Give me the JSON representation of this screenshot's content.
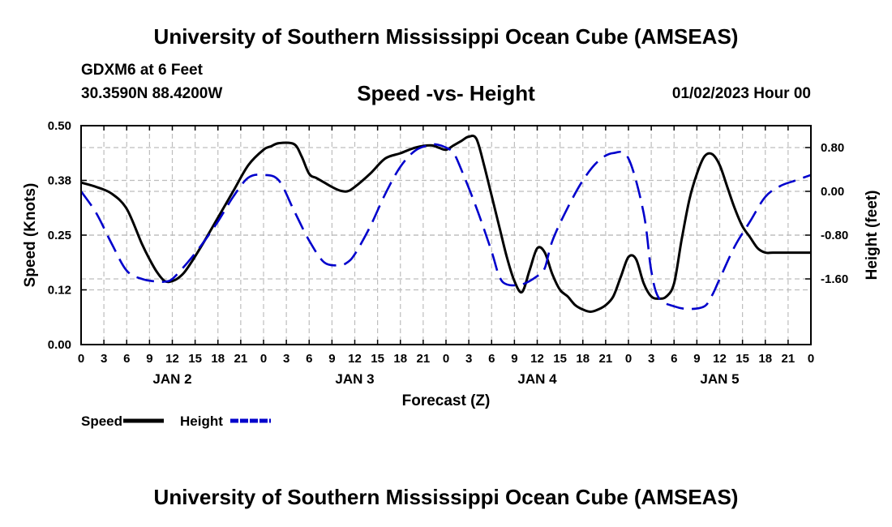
{
  "header": {
    "title": "University of Southern Mississippi Ocean Cube (AMSEAS)",
    "station": "GDXM6 at 6 Feet",
    "coords": "30.3590N  88.4200W",
    "chart_title": "Speed -vs- Height",
    "datetime": "01/02/2023 Hour 00"
  },
  "footer": {
    "title": "University of Southern Mississippi Ocean Cube (AMSEAS)"
  },
  "chart_data": {
    "type": "line",
    "title": "Speed -vs- Height",
    "xlabel": "Forecast (Z)",
    "ylabel_left": "Speed (Knots)",
    "ylabel_right": "Height (feet)",
    "x_range": [
      0,
      96
    ],
    "x_tick_step": 3,
    "x_tick_labels": [
      "0",
      "3",
      "6",
      "9",
      "12",
      "15",
      "18",
      "21",
      "0",
      "3",
      "6",
      "9",
      "12",
      "15",
      "18",
      "21",
      "0",
      "3",
      "6",
      "9",
      "12",
      "15",
      "18",
      "21",
      "0",
      "3",
      "6",
      "9",
      "12",
      "15",
      "18",
      "21",
      "0"
    ],
    "day_labels": [
      {
        "label": "JAN 2",
        "x": 12
      },
      {
        "label": "JAN 3",
        "x": 36
      },
      {
        "label": "JAN 4",
        "x": 60
      },
      {
        "label": "JAN 5",
        "x": 84
      }
    ],
    "y_left": {
      "range": [
        0,
        0.5
      ],
      "ticks": [
        0.0,
        0.125,
        0.25,
        0.375,
        0.5
      ],
      "tick_labels": [
        "0.00",
        "0.12",
        "0.25",
        "0.38",
        "0.50"
      ]
    },
    "y_right": {
      "range": [
        -2.8,
        1.2
      ],
      "ticks": [
        0.8,
        0.0,
        -0.8,
        -1.6
      ],
      "tick_labels": [
        "0.80",
        "0.00",
        "-0.80",
        "-1.60"
      ]
    },
    "grid": true,
    "legend": [
      {
        "label": "Speed",
        "color": "#000000",
        "style": "solid"
      },
      {
        "label": "Height",
        "color": "#0000cc",
        "style": "dashed"
      }
    ],
    "series": [
      {
        "name": "Speed",
        "axis": "left",
        "color": "#000000",
        "style": "solid",
        "x": [
          0,
          2,
          4,
          6,
          8,
          9,
          10,
          11,
          12,
          13,
          14,
          16,
          18,
          20,
          22,
          24,
          25,
          26,
          28,
          29,
          30,
          31,
          32,
          33,
          34,
          35,
          36,
          38,
          40,
          42,
          44,
          46,
          47,
          48,
          49,
          50,
          51,
          52,
          53,
          54,
          55,
          56,
          57,
          58,
          59,
          60,
          61,
          62,
          63,
          64,
          65,
          66,
          67,
          68,
          69,
          70,
          71,
          72,
          73,
          74,
          75,
          76,
          77,
          78,
          79,
          80,
          81,
          82,
          83,
          84,
          85,
          86,
          87,
          88,
          89,
          90,
          91,
          92,
          93,
          94,
          95,
          96
        ],
        "y": [
          0.37,
          0.36,
          0.345,
          0.31,
          0.23,
          0.195,
          0.165,
          0.145,
          0.145,
          0.155,
          0.175,
          0.23,
          0.29,
          0.35,
          0.41,
          0.445,
          0.453,
          0.46,
          0.458,
          0.43,
          0.39,
          0.38,
          0.37,
          0.36,
          0.352,
          0.35,
          0.36,
          0.39,
          0.425,
          0.437,
          0.45,
          0.455,
          0.45,
          0.445,
          0.455,
          0.465,
          0.475,
          0.47,
          0.41,
          0.34,
          0.27,
          0.2,
          0.145,
          0.12,
          0.17,
          0.22,
          0.21,
          0.16,
          0.125,
          0.11,
          0.09,
          0.08,
          0.075,
          0.08,
          0.09,
          0.11,
          0.155,
          0.2,
          0.195,
          0.14,
          0.11,
          0.105,
          0.11,
          0.14,
          0.24,
          0.33,
          0.39,
          0.43,
          0.435,
          0.41,
          0.36,
          0.31,
          0.27,
          0.245,
          0.22,
          0.21,
          0.21,
          0.21,
          0.21,
          0.21,
          0.21,
          0.21
        ]
      },
      {
        "name": "Height",
        "axis": "right",
        "color": "#0000cc",
        "style": "dashed",
        "x": [
          0,
          2,
          4,
          6,
          8,
          10,
          11,
          12,
          14,
          16,
          18,
          20,
          22,
          24,
          26,
          28,
          30,
          32,
          34,
          35,
          36,
          38,
          40,
          42,
          44,
          46,
          47,
          48,
          49,
          50,
          52,
          54,
          55,
          56,
          58,
          60,
          61,
          62,
          64,
          66,
          68,
          70,
          72,
          74,
          75,
          76,
          78,
          80,
          82,
          83,
          84,
          86,
          88,
          90,
          92,
          94,
          96
        ],
        "y": [
          0.0,
          -0.4,
          -0.95,
          -1.45,
          -1.6,
          -1.65,
          -1.65,
          -1.6,
          -1.3,
          -0.95,
          -0.55,
          -0.1,
          0.25,
          0.3,
          0.2,
          -0.35,
          -0.9,
          -1.3,
          -1.35,
          -1.3,
          -1.15,
          -0.65,
          -0.05,
          0.45,
          0.75,
          0.85,
          0.85,
          0.8,
          0.7,
          0.4,
          -0.3,
          -1.1,
          -1.55,
          -1.7,
          -1.7,
          -1.55,
          -1.4,
          -0.9,
          -0.3,
          0.2,
          0.55,
          0.7,
          0.6,
          -0.4,
          -1.45,
          -1.95,
          -2.1,
          -2.15,
          -2.1,
          -1.9,
          -1.6,
          -1.0,
          -0.55,
          -0.1,
          0.1,
          0.2,
          0.3
        ]
      }
    ]
  }
}
